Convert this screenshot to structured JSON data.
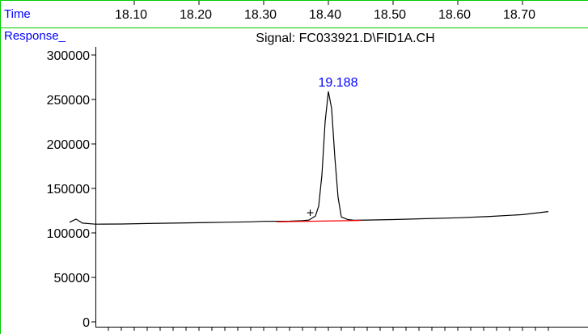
{
  "header": {
    "time_label": "Time",
    "time_ticks": [
      "18.10",
      "18.20",
      "18.30",
      "18.40",
      "18.50",
      "18.60",
      "18.70"
    ],
    "response_label": "Response_",
    "signal_title": "Signal: FC033921.D\\FID1A.CH"
  },
  "colors": {
    "frame_line": "#00cc00",
    "label_blue": "#0000ff",
    "trace": "#000000",
    "baseline": "#ff0000",
    "peak_label": "#0000ff"
  },
  "chart_data": {
    "type": "line",
    "title": "Signal: FC033921.D\\FID1A.CH",
    "xlabel": "Time",
    "ylabel": "Response_",
    "ylim": [
      0,
      300000
    ],
    "yticks": [
      0,
      50000,
      100000,
      150000,
      200000,
      250000,
      300000
    ],
    "ytick_labels": [
      "0",
      "50000",
      "100000",
      "150000",
      "200000",
      "250000",
      "300000"
    ],
    "xticks": [
      18.1,
      18.2,
      18.3,
      18.4,
      18.5,
      18.6,
      18.7
    ],
    "xtick_labels": [
      "18.10",
      "18.20",
      "18.30",
      "18.40",
      "18.50",
      "18.60",
      "18.70"
    ],
    "peak_label": "19.188",
    "series": [
      {
        "x": [
          18.0,
          18.01,
          18.02,
          18.04,
          18.08,
          18.12,
          18.16,
          18.2,
          18.24,
          18.28,
          18.3,
          18.34,
          18.36,
          18.37,
          18.38,
          18.385,
          18.39,
          18.395,
          18.4,
          18.405,
          18.41,
          18.415,
          18.42,
          18.43,
          18.44,
          18.46,
          18.5,
          18.55,
          18.6,
          18.65,
          18.7,
          18.74
        ],
        "y": [
          112000,
          115500,
          111000,
          109800,
          110000,
          110500,
          111000,
          111500,
          112000,
          112500,
          113000,
          113200,
          113800,
          114500,
          119000,
          130000,
          165000,
          225000,
          259000,
          240000,
          185000,
          140000,
          118000,
          115000,
          114200,
          114500,
          115000,
          116000,
          117000,
          118500,
          120500,
          124000
        ]
      }
    ],
    "baseline": {
      "x": [
        18.32,
        18.45
      ],
      "y": [
        112500,
        114000
      ]
    },
    "marker": {
      "symbol": "+",
      "x": 18.372,
      "y": 123000
    }
  }
}
